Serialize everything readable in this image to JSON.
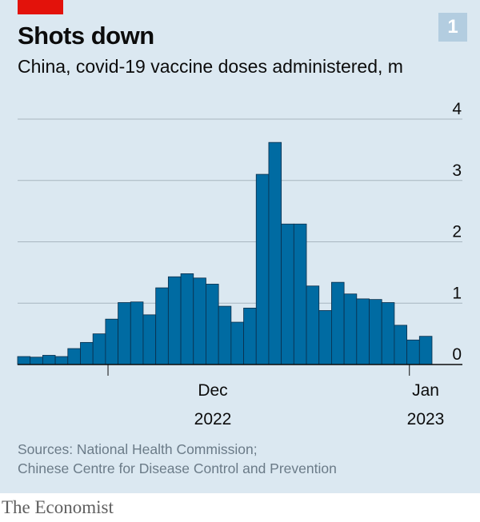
{
  "header": {
    "title": "Shots down",
    "subtitle": "China, covid-19 vaccine doses administered, m",
    "badge": "1"
  },
  "colors": {
    "background": "#dbe8f1",
    "bar": "#006ba2",
    "bar_edge": "#0b2e4a",
    "tag": "#e3120b"
  },
  "chart_data": {
    "type": "bar",
    "title": "Shots down",
    "subtitle": "China, covid-19 vaccine doses administered, m",
    "xlabel": "",
    "ylabel": "",
    "y_ticks": [
      0,
      1,
      2,
      3,
      4
    ],
    "ylim": [
      0,
      4
    ],
    "grid": true,
    "x_tick_labels": [
      {
        "label": "Dec",
        "year": "2022"
      },
      {
        "label": "Jan",
        "year": "2023"
      }
    ],
    "values": [
      0.13,
      0.12,
      0.15,
      0.13,
      0.26,
      0.36,
      0.5,
      0.74,
      1.01,
      1.02,
      0.81,
      1.25,
      1.43,
      1.48,
      1.41,
      1.31,
      0.95,
      0.69,
      0.92,
      3.1,
      3.62,
      2.29,
      2.29,
      1.28,
      0.88,
      1.34,
      1.15,
      1.07,
      1.06,
      1.01,
      0.64,
      0.4,
      0.46
    ]
  },
  "footer": {
    "source_line1": "Sources: National Health Commission;",
    "source_line2": "Chinese Centre for Disease Control and Prevention",
    "brand": "The Economist"
  }
}
